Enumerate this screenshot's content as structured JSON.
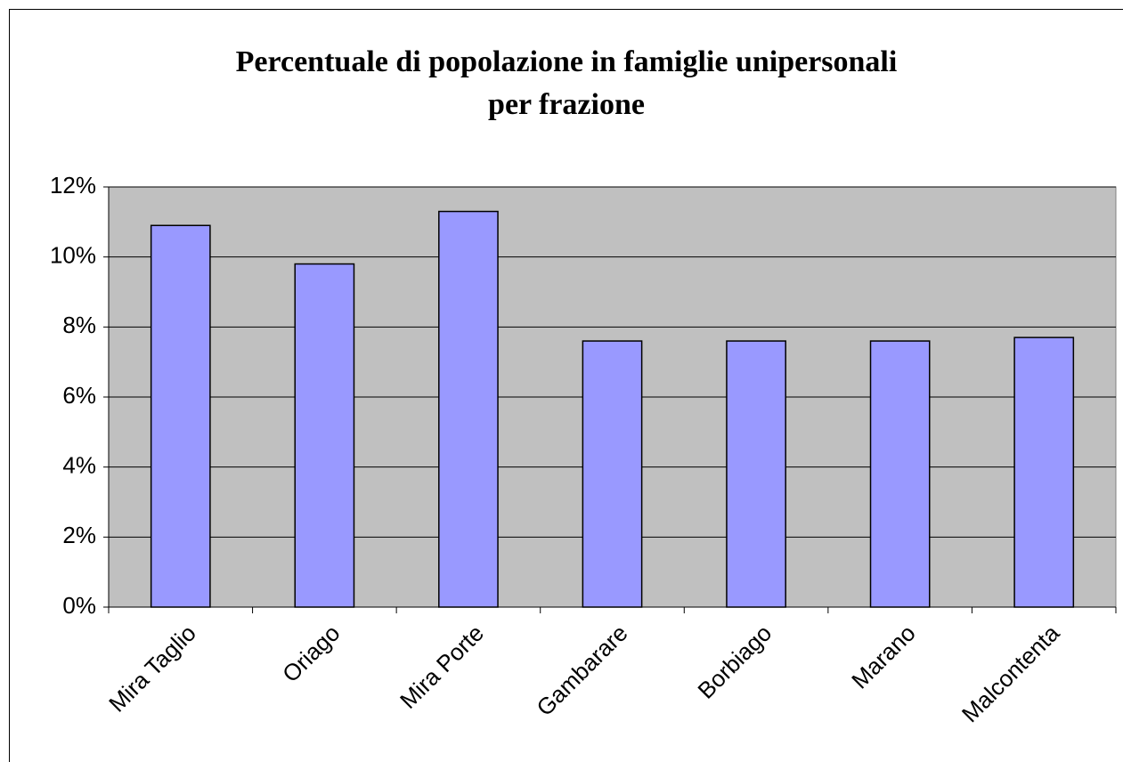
{
  "chart_data": {
    "type": "bar",
    "title": [
      "Percentuale di popolazione in famiglie unipersonali",
      "per frazione"
    ],
    "categories": [
      "Mira Taglio",
      "Oriago",
      "Mira Porte",
      "Gambarare",
      "Borbiago",
      "Marano",
      "Malcontenta"
    ],
    "values": [
      10.9,
      9.8,
      11.3,
      7.6,
      7.6,
      7.6,
      7.7
    ],
    "color": "#9999ff",
    "ylim": [
      0,
      12
    ],
    "yticks": [
      {
        "value": 0,
        "label": "0%"
      },
      {
        "value": 2,
        "label": "2%"
      },
      {
        "value": 4,
        "label": "4%"
      },
      {
        "value": 6,
        "label": "6%"
      },
      {
        "value": 8,
        "label": "8%"
      },
      {
        "value": 10,
        "label": "10%"
      },
      {
        "value": 12,
        "label": "12%"
      }
    ],
    "grid": true
  }
}
